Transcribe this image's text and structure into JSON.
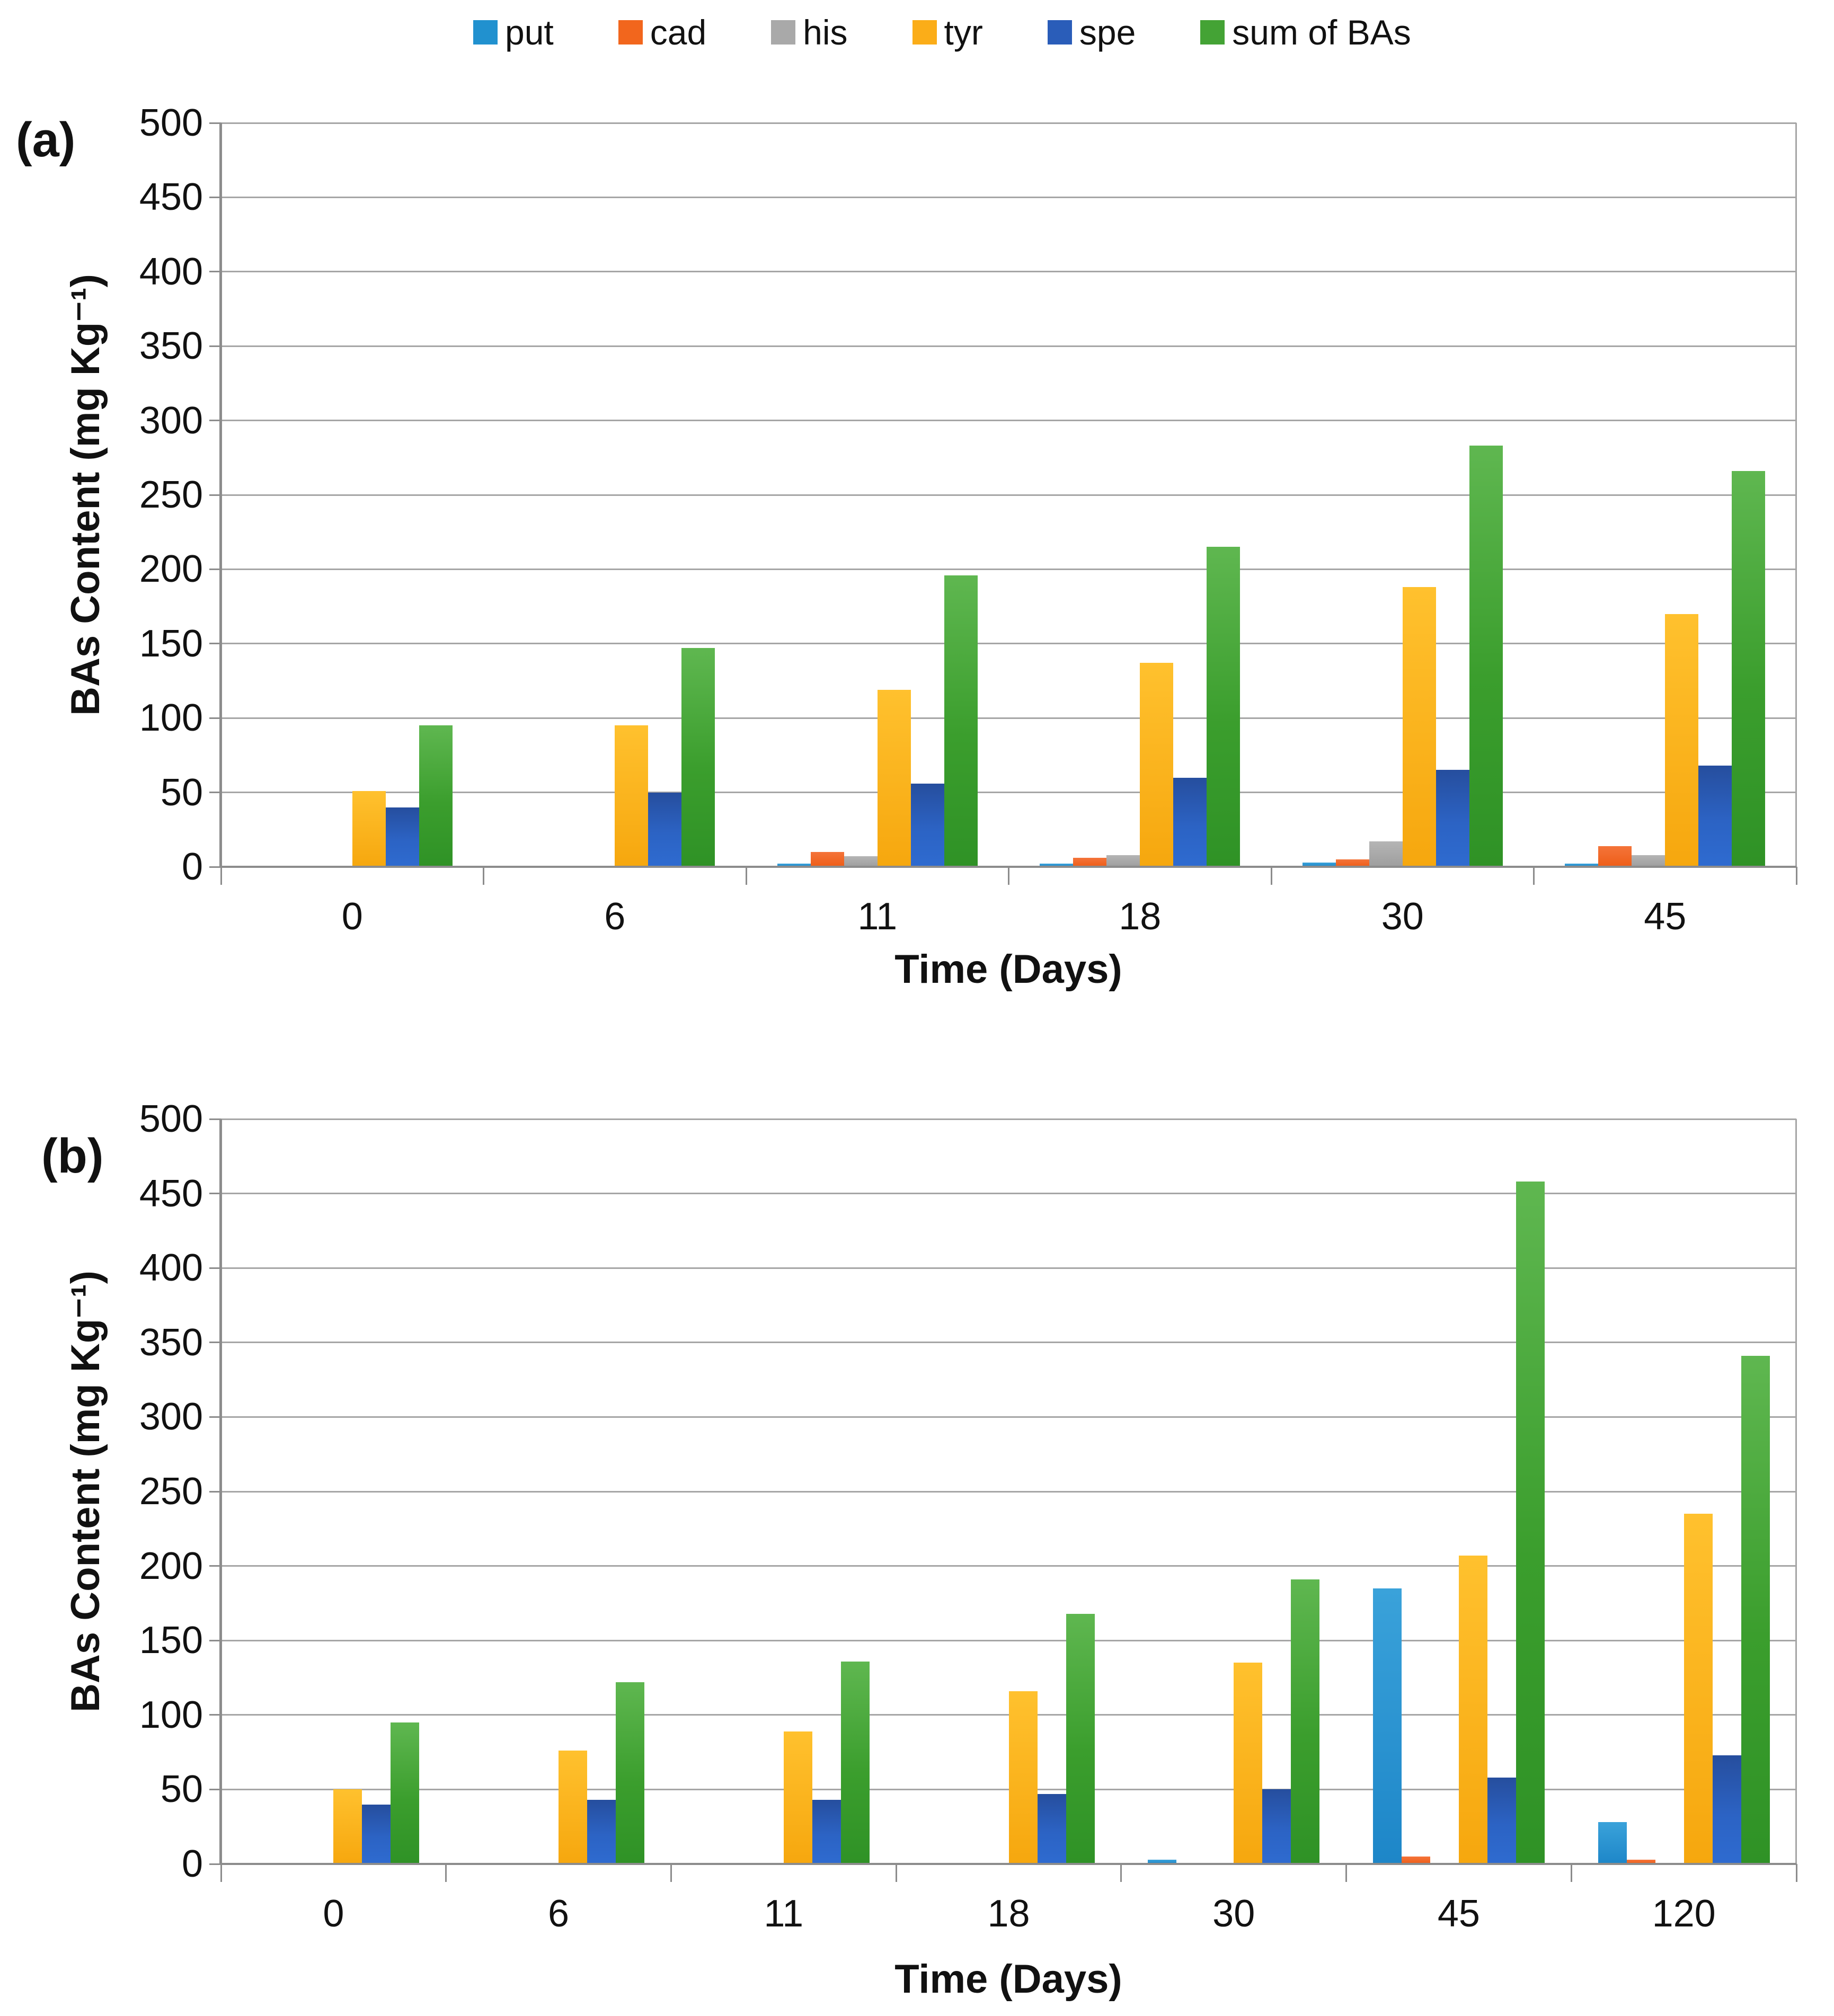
{
  "figure": {
    "background": "#FFFFFF"
  },
  "legend": {
    "position": "top-center",
    "items": [
      {
        "label": "put",
        "color": "#2191CF"
      },
      {
        "label": "cad",
        "color": "#F2661D"
      },
      {
        "label": "his",
        "color": "#A9A9A9"
      },
      {
        "label": "tyr",
        "color": "#FBAD18"
      },
      {
        "label": "spe",
        "color": "#2A5DB9"
      },
      {
        "label": "sum of BAs",
        "color": "#44A335"
      }
    ]
  },
  "chart_data": [
    {
      "id": "a",
      "panel_label": "(a)",
      "type": "bar",
      "title": "",
      "xlabel": "Time (Days)",
      "ylabel": "BAs Content (mg Kg⁻¹)",
      "ylim": [
        0,
        500
      ],
      "ytick_step": 50,
      "ytick_labels": [
        "500",
        "450",
        "400",
        "350",
        "300",
        "250",
        "200",
        "150",
        "100",
        "50",
        "0"
      ],
      "grid": true,
      "legend_position": "top",
      "categories": [
        "0",
        "6",
        "11",
        "18",
        "30",
        "45"
      ],
      "series": [
        {
          "name": "put",
          "color": "#2191CF",
          "values": [
            0,
            0,
            2,
            2,
            3,
            2
          ]
        },
        {
          "name": "cad",
          "color": "#F2661D",
          "values": [
            0,
            0,
            10,
            6,
            5,
            14
          ]
        },
        {
          "name": "his",
          "color": "#A9A9A9",
          "values": [
            0,
            0,
            7,
            8,
            17,
            8
          ]
        },
        {
          "name": "tyr",
          "color": "#FBAD18",
          "values": [
            51,
            95,
            119,
            137,
            188,
            170
          ]
        },
        {
          "name": "spe",
          "color": "#2A5DB9",
          "values": [
            40,
            50,
            56,
            60,
            65,
            68
          ]
        },
        {
          "name": "sum of BAs",
          "color": "#44A335",
          "values": [
            95,
            147,
            196,
            215,
            283,
            266
          ]
        }
      ]
    },
    {
      "id": "b",
      "panel_label": "(b)",
      "type": "bar",
      "title": "",
      "xlabel": "Time (Days)",
      "ylabel": "BAs Content (mg Kg⁻¹)",
      "ylim": [
        0,
        500
      ],
      "ytick_step": 50,
      "ytick_labels": [
        "500",
        "450",
        "400",
        "350",
        "300",
        "250",
        "200",
        "150",
        "100",
        "50",
        "0"
      ],
      "grid": true,
      "legend_position": "top",
      "categories": [
        "0",
        "6",
        "11",
        "18",
        "30",
        "45",
        "120"
      ],
      "series": [
        {
          "name": "put",
          "color": "#2191CF",
          "values": [
            0,
            0,
            0,
            0,
            3,
            185,
            28
          ]
        },
        {
          "name": "cad",
          "color": "#F2661D",
          "values": [
            0,
            0,
            0,
            0,
            0,
            5,
            3
          ]
        },
        {
          "name": "his",
          "color": "#A9A9A9",
          "values": [
            0,
            0,
            0,
            0,
            0,
            0,
            0
          ]
        },
        {
          "name": "tyr",
          "color": "#FBAD18",
          "values": [
            50,
            76,
            89,
            116,
            135,
            207,
            235
          ]
        },
        {
          "name": "spe",
          "color": "#2A5DB9",
          "values": [
            40,
            43,
            43,
            47,
            50,
            58,
            73
          ]
        },
        {
          "name": "sum of BAs",
          "color": "#44A335",
          "values": [
            95,
            122,
            136,
            168,
            191,
            458,
            341
          ]
        }
      ]
    }
  ]
}
